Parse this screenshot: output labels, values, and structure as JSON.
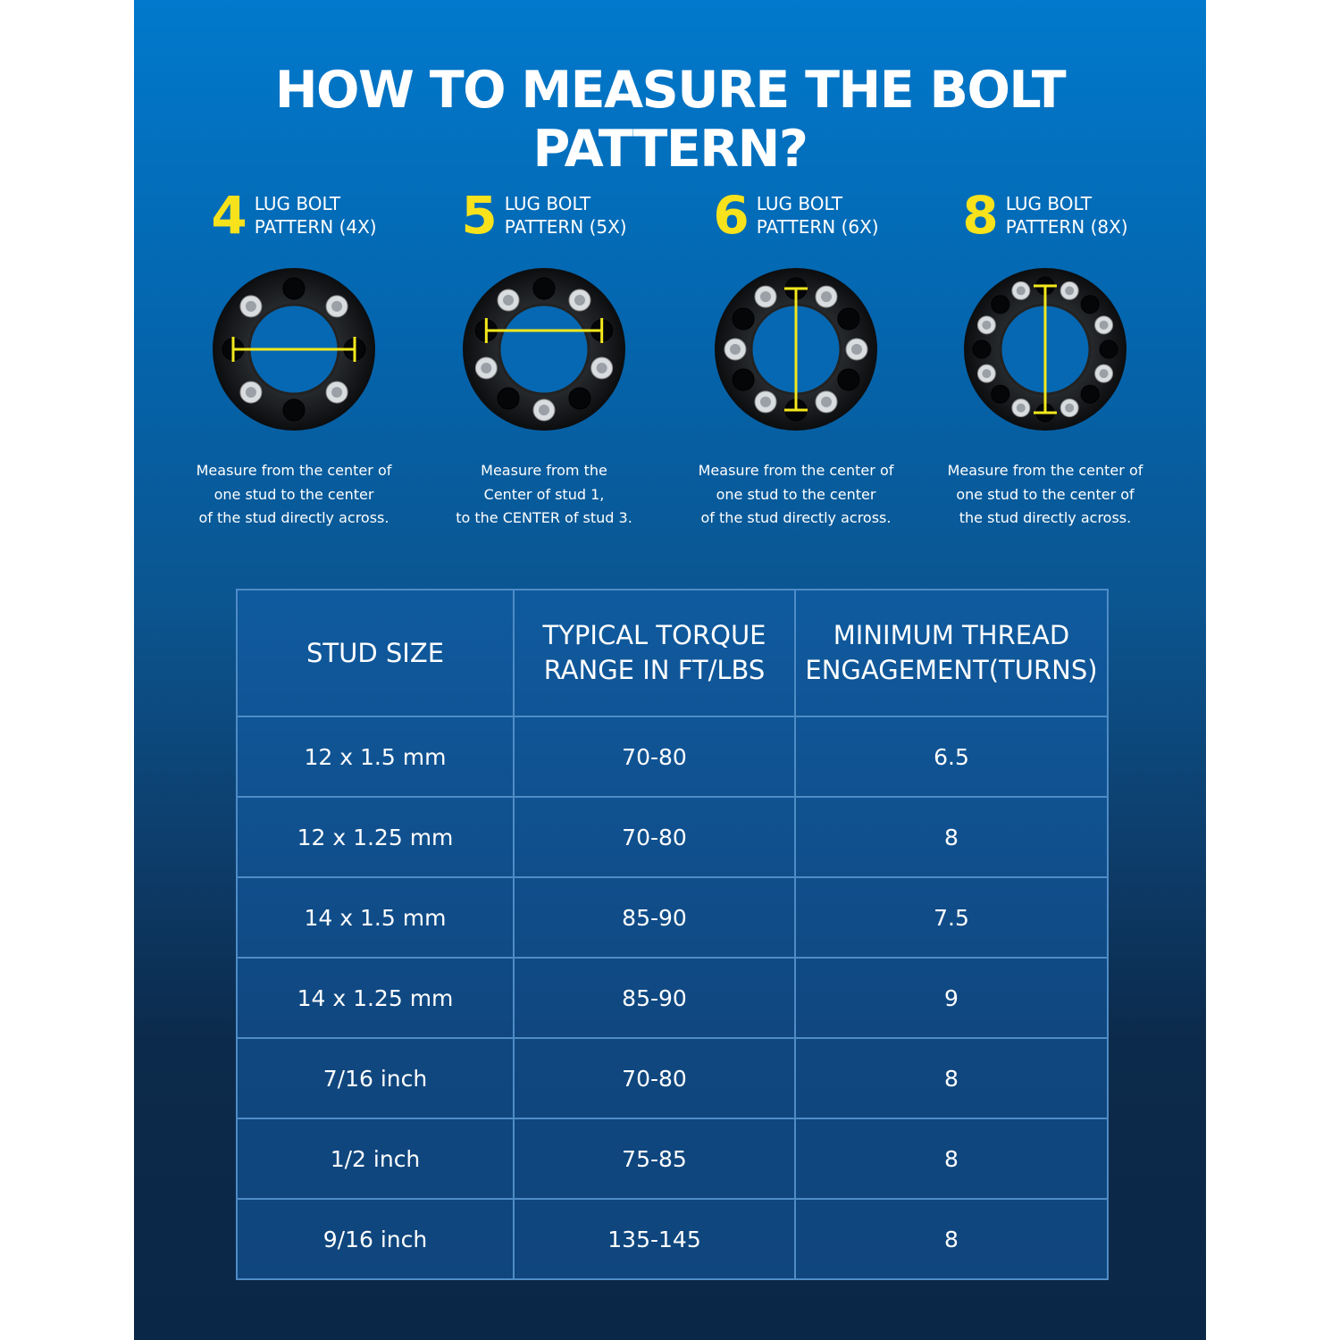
{
  "title": "HOW TO MEASURE THE BOLT PATTERN?",
  "colors": {
    "accent": "#f7e21c",
    "panel_top": "#0279cc",
    "panel_bottom": "#0b2747"
  },
  "patterns": [
    {
      "number": "4",
      "line1": "LUG BOLT",
      "line2": "PATTERN (4X)",
      "lugs": 4,
      "desc": [
        "Measure from the center of",
        "one stud to the center",
        "of the stud directly across."
      ]
    },
    {
      "number": "5",
      "line1": "LUG BOLT",
      "line2": "PATTERN (5X)",
      "lugs": 5,
      "desc": [
        "Measure from the",
        "Center of stud 1,",
        "to the CENTER  of stud 3."
      ]
    },
    {
      "number": "6",
      "line1": "LUG BOLT",
      "line2": "PATTERN (6X)",
      "lugs": 6,
      "desc": [
        "Measure from the center of",
        "one stud to the center",
        "of the stud directly across."
      ]
    },
    {
      "number": "8",
      "line1": "LUG BOLT",
      "line2": "PATTERN (8X)",
      "lugs": 8,
      "desc": [
        "Measure from the center of",
        "one stud to the center of",
        "the stud directly across."
      ]
    }
  ],
  "table": {
    "headers": [
      [
        "STUD SIZE"
      ],
      [
        "TYPICAL TORQUE",
        "RANGE IN FT/LBS"
      ],
      [
        "MINIMUM THREAD",
        "ENGAGEMENT(TURNS)"
      ]
    ],
    "rows": [
      [
        "12 x 1.5 mm",
        "70-80",
        "6.5"
      ],
      [
        "12 x 1.25 mm",
        "70-80",
        "8"
      ],
      [
        "14 x 1.5 mm",
        "85-90",
        "7.5"
      ],
      [
        "14 x 1.25 mm",
        "85-90",
        "9"
      ],
      [
        "7/16 inch",
        "70-80",
        "8"
      ],
      [
        "1/2 inch",
        "75-85",
        "8"
      ],
      [
        "9/16 inch",
        "135-145",
        "8"
      ]
    ]
  }
}
